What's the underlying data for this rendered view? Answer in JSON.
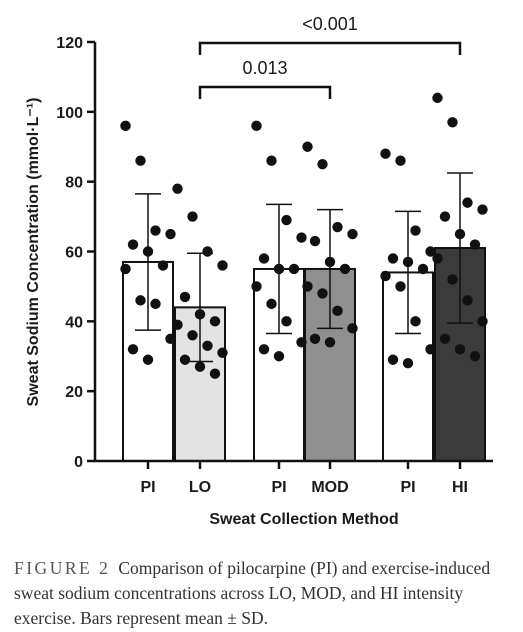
{
  "chart_data": {
    "type": "bar",
    "xlabel": "Sweat Collection Method",
    "ylabel": "Sweat Sodium Concentration (mmol·L⁻¹)",
    "ylim": [
      0,
      120
    ],
    "yticks": [
      "0",
      "20",
      "40",
      "60",
      "80",
      "100",
      "120"
    ],
    "categories": [
      "PI",
      "LO",
      "PI",
      "MOD",
      "PI",
      "HI"
    ],
    "bar_colors": [
      "#ffffff",
      "#e3e3e3",
      "#ffffff",
      "#8f8f8f",
      "#ffffff",
      "#3b3b3b"
    ],
    "means": [
      57,
      44,
      55,
      55,
      54,
      61
    ],
    "sd": [
      19.5,
      15.5,
      18.5,
      17,
      17.5,
      21.5
    ],
    "points": [
      [
        96,
        86,
        66,
        65,
        62,
        60,
        56,
        55,
        46,
        45,
        35,
        32,
        29
      ],
      [
        78,
        70,
        60,
        56,
        47,
        42,
        40,
        39,
        36,
        33,
        31,
        29,
        27,
        25
      ],
      [
        96,
        86,
        69,
        64,
        58,
        55,
        55,
        50,
        45,
        40,
        34,
        32,
        30
      ],
      [
        90,
        85,
        67,
        65,
        63,
        57,
        55,
        50,
        48,
        43,
        38,
        35,
        34
      ],
      [
        88,
        86,
        66,
        60,
        58,
        57,
        55,
        53,
        50,
        40,
        32,
        29,
        28
      ],
      [
        104,
        97,
        74,
        72,
        70,
        65,
        62,
        58,
        52,
        46,
        40,
        35,
        32,
        30
      ]
    ],
    "comparisons": [
      {
        "label": "0.013",
        "from": 1,
        "to": 3
      },
      {
        "label": "<0.001",
        "from": 1,
        "to": 5
      }
    ]
  },
  "caption": {
    "figure_label": "FIGURE 2",
    "text": "Comparison of pilocarpine (PI) and exercise-induced sweat sodium concentrations across LO, MOD, and HI intensity exercise. Bars represent mean ± SD."
  }
}
